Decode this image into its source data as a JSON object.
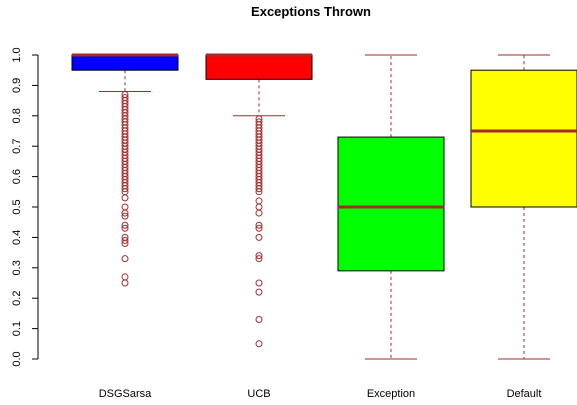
{
  "chart_data": {
    "type": "box",
    "title": "Exceptions  Thrown",
    "xlabel": "",
    "ylabel": "",
    "ylim": [
      0,
      1
    ],
    "yticks": [
      "0.0",
      "0.1",
      "0.2",
      "0.3",
      "0.4",
      "0.5",
      "0.6",
      "0.7",
      "0.8",
      "0.9",
      "1.0"
    ],
    "grid": false,
    "series": [
      {
        "name": "DSGSarsa",
        "color": "#0000ff",
        "min": 0.88,
        "q1": 0.95,
        "median": 1.0,
        "q3": 1.0,
        "max": 1.0,
        "outliers": [
          0.87,
          0.86,
          0.85,
          0.84,
          0.83,
          0.82,
          0.81,
          0.8,
          0.79,
          0.78,
          0.77,
          0.76,
          0.75,
          0.74,
          0.73,
          0.72,
          0.71,
          0.7,
          0.69,
          0.68,
          0.67,
          0.66,
          0.65,
          0.64,
          0.63,
          0.62,
          0.61,
          0.6,
          0.59,
          0.58,
          0.57,
          0.56,
          0.55,
          0.53,
          0.5,
          0.48,
          0.47,
          0.44,
          0.43,
          0.4,
          0.39,
          0.38,
          0.33,
          0.27,
          0.25
        ]
      },
      {
        "name": "UCB",
        "color": "#ff0000",
        "min": 0.8,
        "q1": 0.92,
        "median": 1.0,
        "q3": 1.0,
        "max": 1.0,
        "outliers": [
          0.79,
          0.78,
          0.77,
          0.76,
          0.75,
          0.74,
          0.73,
          0.72,
          0.71,
          0.7,
          0.69,
          0.68,
          0.67,
          0.66,
          0.65,
          0.64,
          0.63,
          0.62,
          0.61,
          0.6,
          0.59,
          0.58,
          0.57,
          0.56,
          0.55,
          0.52,
          0.5,
          0.48,
          0.44,
          0.43,
          0.4,
          0.34,
          0.33,
          0.25,
          0.22,
          0.13,
          0.05
        ]
      },
      {
        "name": "Exception",
        "color": "#00ff00",
        "min": 0.0,
        "q1": 0.29,
        "median": 0.5,
        "q3": 0.73,
        "max": 1.0,
        "outliers": []
      },
      {
        "name": "Default",
        "color": "#ffff00",
        "min": 0.0,
        "q1": 0.5,
        "median": 0.75,
        "q3": 0.95,
        "max": 1.0,
        "outliers": []
      }
    ],
    "style": {
      "median_color": "#a52a2a",
      "whisker_color": "#a52a2a",
      "outlier_color": "#a52a2a",
      "box_border_color": "#000000"
    }
  }
}
